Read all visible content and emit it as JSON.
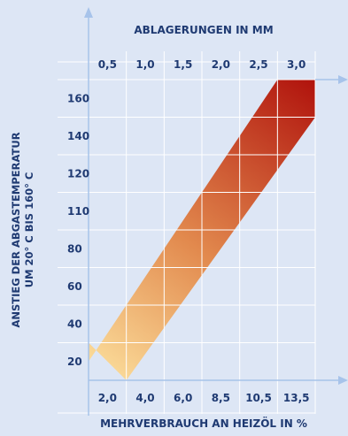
{
  "chart_data": {
    "type": "area",
    "top_axis": {
      "title": "ABLAGERUNGEN IN MM",
      "tick_labels": [
        "0,5",
        "1,0",
        "1,5",
        "2,0",
        "2,5",
        "3,0"
      ]
    },
    "bottom_axis": {
      "title": "MEHRVERBRAUCH AN HEIZÖL IN %",
      "tick_labels": [
        "2,0",
        "4,0",
        "6,0",
        "8,5",
        "10,5",
        "13,5"
      ]
    },
    "y_axis": {
      "title_line1": "ANSTIEG DER ABGASTEMPERATUR",
      "title_line2": "UM 20° C BIS 160° C",
      "tick_labels": [
        "160",
        "140",
        "120",
        "110",
        "80",
        "60",
        "40",
        "20"
      ]
    },
    "band": {
      "description_values": "column index (0-6) vs row index (0-8) from bottom",
      "lower_edge": [
        [
          1,
          0
        ],
        [
          6,
          7
        ]
      ],
      "upper_edge": [
        [
          0,
          1
        ],
        [
          0,
          0.5
        ],
        [
          5,
          8
        ],
        [
          6,
          8
        ]
      ],
      "gradient_start": "#fde3a0",
      "gradient_end": "#b0120c"
    },
    "grid": true,
    "colors": {
      "background": "#dde6f5",
      "grid": "#ffffff",
      "axis_arrow": "#a7c3ea",
      "text": "#1f3a72"
    }
  }
}
